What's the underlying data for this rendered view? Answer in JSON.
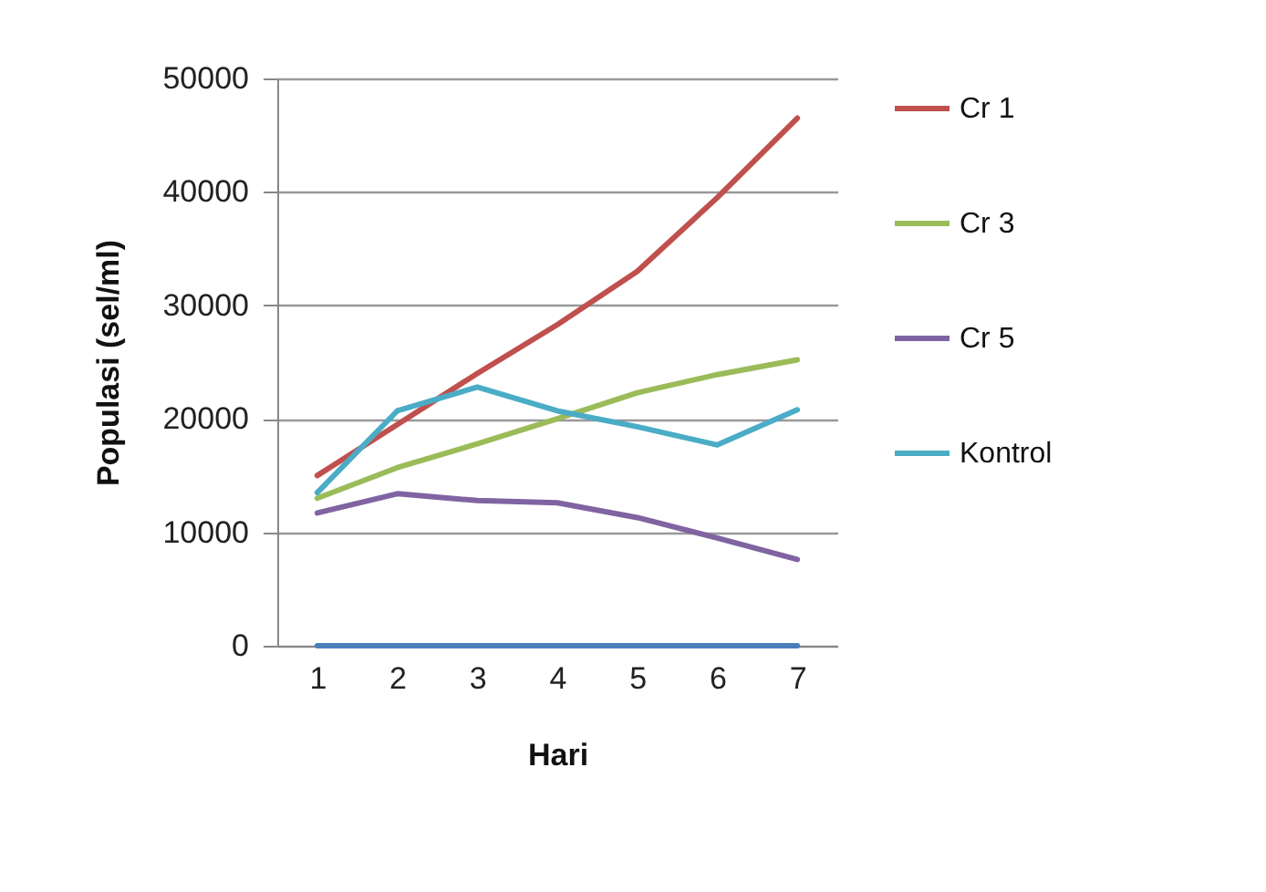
{
  "chart_data": {
    "type": "line",
    "xlabel": "Hari",
    "ylabel": "Populasi (sel/ml)",
    "categories": [
      "1",
      "2",
      "3",
      "4",
      "5",
      "6",
      "7"
    ],
    "series": [
      {
        "name": "Cr 1",
        "color": "#c0504d",
        "values": [
          15000,
          19500,
          24000,
          28300,
          33000,
          39500,
          46500
        ]
      },
      {
        "name": "Cr 3",
        "color": "#9bbb59",
        "values": [
          13000,
          15700,
          17800,
          20000,
          22300,
          23900,
          25200
        ]
      },
      {
        "name": "Cr 5",
        "color": "#8064a2",
        "values": [
          11700,
          13400,
          12800,
          12600,
          11300,
          9500,
          7600
        ]
      },
      {
        "name": "Kontrol",
        "color": "#4bacc6",
        "values": [
          13500,
          20700,
          22800,
          20700,
          19300,
          17700,
          20800
        ]
      },
      {
        "color": "#4a7ebb",
        "values": [
          0,
          0,
          0,
          0,
          0,
          0,
          0
        ]
      }
    ],
    "ylim": [
      0,
      50000
    ],
    "yticks": [
      0,
      10000,
      20000,
      30000,
      40000,
      50000
    ],
    "grid": "y",
    "legend": "right"
  }
}
